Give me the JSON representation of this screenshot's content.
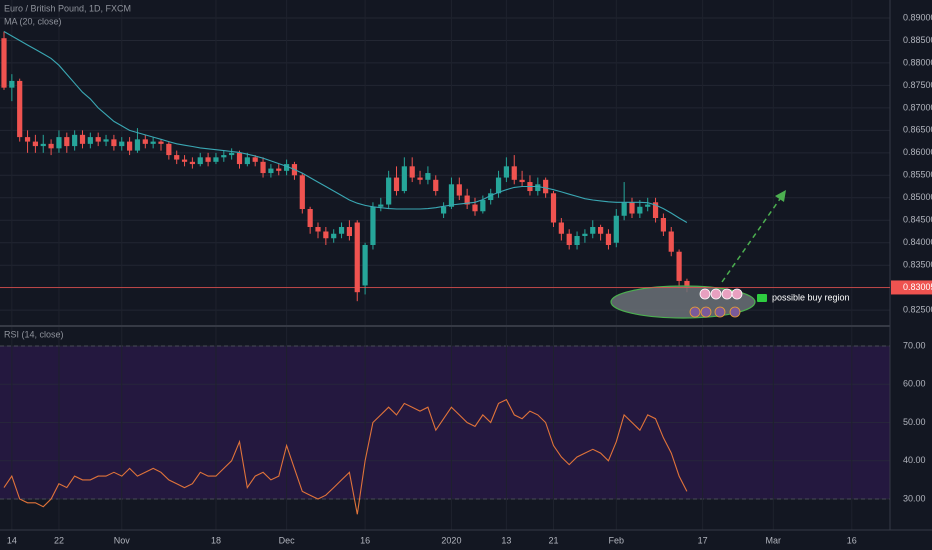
{
  "chart_data": {
    "type": "candlestick",
    "title": "Euro / British Pound, 1D, FXCM",
    "ma_label": "MA (20, close)",
    "rsi_label": "RSI (14, close)",
    "annotation": "possible buy region",
    "colors": {
      "up": "#26a69a",
      "down": "#ef5350",
      "ma": "#3aa7b3",
      "rsi": "#e0733a",
      "band": "#24183f",
      "last": "#ef5350"
    },
    "grid": true,
    "categories": [
      null,
      "14",
      null,
      null,
      null,
      null,
      null,
      "22",
      null,
      null,
      null,
      null,
      null,
      null,
      null,
      "Nov",
      null,
      null,
      null,
      null,
      null,
      null,
      null,
      null,
      null,
      null,
      null,
      "18",
      null,
      null,
      null,
      null,
      null,
      null,
      null,
      null,
      "Dec",
      null,
      null,
      null,
      null,
      null,
      null,
      null,
      null,
      null,
      "16",
      null,
      null,
      null,
      null,
      null,
      null,
      null,
      null,
      null,
      null,
      "2020",
      null,
      null,
      null,
      null,
      null,
      null,
      "13",
      null,
      null,
      null,
      null,
      null,
      "21",
      null,
      null,
      null,
      null,
      null,
      null,
      null,
      "Feb",
      null,
      null,
      null,
      null,
      null,
      null,
      null,
      null,
      null,
      null,
      "17",
      null,
      null,
      null,
      null,
      null,
      null,
      null,
      null,
      "Mar",
      null,
      null,
      null,
      null,
      null,
      null,
      null,
      null,
      null,
      "16",
      null,
      null,
      null,
      null
    ],
    "ohlc": [
      [
        0.8855,
        0.887,
        0.874,
        0.8745
      ],
      [
        0.8745,
        0.8775,
        0.8715,
        0.876
      ],
      [
        0.876,
        0.8765,
        0.8625,
        0.8635
      ],
      [
        0.8635,
        0.865,
        0.86,
        0.8625
      ],
      [
        0.8625,
        0.864,
        0.86,
        0.8615
      ],
      [
        0.8615,
        0.864,
        0.86,
        0.862
      ],
      [
        0.862,
        0.863,
        0.8595,
        0.861
      ],
      [
        0.861,
        0.865,
        0.86,
        0.8635
      ],
      [
        0.8635,
        0.8645,
        0.86,
        0.8615
      ],
      [
        0.8615,
        0.865,
        0.8605,
        0.864
      ],
      [
        0.864,
        0.865,
        0.861,
        0.862
      ],
      [
        0.862,
        0.8645,
        0.861,
        0.8635
      ],
      [
        0.8635,
        0.8645,
        0.8615,
        0.8625
      ],
      [
        0.8625,
        0.864,
        0.8615,
        0.863
      ],
      [
        0.863,
        0.864,
        0.8605,
        0.8615
      ],
      [
        0.8615,
        0.8635,
        0.8605,
        0.8625
      ],
      [
        0.8625,
        0.8635,
        0.8595,
        0.8605
      ],
      [
        0.8605,
        0.8655,
        0.86,
        0.863
      ],
      [
        0.863,
        0.864,
        0.861,
        0.862
      ],
      [
        0.862,
        0.8635,
        0.861,
        0.8625
      ],
      [
        0.8625,
        0.863,
        0.8605,
        0.862
      ],
      [
        0.862,
        0.8625,
        0.8585,
        0.8595
      ],
      [
        0.8595,
        0.8605,
        0.8575,
        0.8585
      ],
      [
        0.8585,
        0.8595,
        0.857,
        0.858
      ],
      [
        0.858,
        0.859,
        0.8565,
        0.8575
      ],
      [
        0.8575,
        0.86,
        0.857,
        0.859
      ],
      [
        0.859,
        0.86,
        0.857,
        0.858
      ],
      [
        0.858,
        0.86,
        0.8575,
        0.859
      ],
      [
        0.859,
        0.8605,
        0.858,
        0.8595
      ],
      [
        0.8595,
        0.861,
        0.8585,
        0.86
      ],
      [
        0.86,
        0.8605,
        0.8565,
        0.8575
      ],
      [
        0.8575,
        0.86,
        0.857,
        0.859
      ],
      [
        0.859,
        0.8595,
        0.857,
        0.858
      ],
      [
        0.858,
        0.859,
        0.8545,
        0.8555
      ],
      [
        0.8555,
        0.8575,
        0.8545,
        0.8565
      ],
      [
        0.8565,
        0.8575,
        0.855,
        0.856
      ],
      [
        0.856,
        0.8585,
        0.855,
        0.8575
      ],
      [
        0.8575,
        0.858,
        0.854,
        0.855
      ],
      [
        0.855,
        0.8555,
        0.8465,
        0.8475
      ],
      [
        0.8475,
        0.848,
        0.842,
        0.8435
      ],
      [
        0.8435,
        0.8445,
        0.841,
        0.8425
      ],
      [
        0.8425,
        0.8435,
        0.8395,
        0.841
      ],
      [
        0.841,
        0.843,
        0.84,
        0.842
      ],
      [
        0.842,
        0.8445,
        0.841,
        0.8435
      ],
      [
        0.8435,
        0.845,
        0.8405,
        0.8415
      ],
      [
        0.8445,
        0.845,
        0.827,
        0.829
      ],
      [
        0.8305,
        0.84,
        0.8285,
        0.8395
      ],
      [
        0.8395,
        0.849,
        0.8385,
        0.848
      ],
      [
        0.848,
        0.85,
        0.847,
        0.8485
      ],
      [
        0.8485,
        0.856,
        0.8475,
        0.8545
      ],
      [
        0.8545,
        0.857,
        0.8505,
        0.8515
      ],
      [
        0.8515,
        0.859,
        0.851,
        0.857
      ],
      [
        0.857,
        0.859,
        0.8535,
        0.8545
      ],
      [
        0.8545,
        0.856,
        0.853,
        0.854
      ],
      [
        0.854,
        0.857,
        0.853,
        0.8555
      ],
      [
        0.854,
        0.855,
        0.8505,
        0.8515
      ],
      [
        0.8465,
        0.849,
        0.8455,
        0.848
      ],
      [
        0.848,
        0.8545,
        0.8475,
        0.853
      ],
      [
        0.853,
        0.8545,
        0.8495,
        0.8505
      ],
      [
        0.8505,
        0.852,
        0.8475,
        0.8485
      ],
      [
        0.8485,
        0.85,
        0.846,
        0.847
      ],
      [
        0.847,
        0.8505,
        0.8465,
        0.8495
      ],
      [
        0.8495,
        0.852,
        0.8485,
        0.851
      ],
      [
        0.851,
        0.856,
        0.85,
        0.8545
      ],
      [
        0.8545,
        0.859,
        0.8535,
        0.857
      ],
      [
        0.857,
        0.8595,
        0.853,
        0.854
      ],
      [
        0.854,
        0.856,
        0.8525,
        0.8535
      ],
      [
        0.8535,
        0.855,
        0.8505,
        0.8515
      ],
      [
        0.8515,
        0.8545,
        0.8505,
        0.853
      ],
      [
        0.854,
        0.8545,
        0.85,
        0.851
      ],
      [
        0.851,
        0.8515,
        0.8435,
        0.8445
      ],
      [
        0.8445,
        0.8455,
        0.8405,
        0.842
      ],
      [
        0.842,
        0.843,
        0.8385,
        0.8395
      ],
      [
        0.8395,
        0.8425,
        0.8385,
        0.8415
      ],
      [
        0.8415,
        0.843,
        0.84,
        0.842
      ],
      [
        0.842,
        0.845,
        0.841,
        0.8435
      ],
      [
        0.8435,
        0.844,
        0.8405,
        0.842
      ],
      [
        0.842,
        0.843,
        0.8385,
        0.8395
      ],
      [
        0.84,
        0.8475,
        0.839,
        0.846
      ],
      [
        0.846,
        0.8535,
        0.845,
        0.849
      ],
      [
        0.849,
        0.85,
        0.8455,
        0.8465
      ],
      [
        0.8465,
        0.8495,
        0.8455,
        0.848
      ],
      [
        0.848,
        0.85,
        0.847,
        0.8485
      ],
      [
        0.849,
        0.85,
        0.8445,
        0.8455
      ],
      [
        0.8455,
        0.8465,
        0.8415,
        0.8425
      ],
      [
        0.8425,
        0.8435,
        0.837,
        0.838
      ],
      [
        0.838,
        0.8385,
        0.8305,
        0.8315
      ],
      [
        0.8315,
        0.832,
        0.829,
        0.83
      ],
      null,
      null,
      null,
      null,
      null,
      null,
      null,
      null,
      null,
      null,
      null,
      null,
      null,
      null,
      null,
      null,
      null,
      null,
      null,
      null,
      null,
      null,
      null,
      null,
      null
    ],
    "ma": [
      0.887,
      0.886,
      0.885,
      0.884,
      0.883,
      0.882,
      0.881,
      0.8795,
      0.8775,
      0.8755,
      0.8735,
      0.872,
      0.87,
      0.8685,
      0.867,
      0.866,
      0.865,
      0.8645,
      0.864,
      0.8635,
      0.863,
      0.8625,
      0.862,
      0.8617,
      0.8614,
      0.8611,
      0.8609,
      0.8607,
      0.8605,
      0.8603,
      0.8601,
      0.8597,
      0.8593,
      0.8588,
      0.8582,
      0.8576,
      0.857,
      0.8563,
      0.8555,
      0.8545,
      0.8535,
      0.8525,
      0.8515,
      0.8505,
      0.8495,
      0.8488,
      0.8483,
      0.848,
      0.8478,
      0.8476,
      0.8475,
      0.8475,
      0.8475,
      0.8475,
      0.8476,
      0.8478,
      0.8481,
      0.8484,
      0.8486,
      0.8488,
      0.849,
      0.8496,
      0.8505,
      0.8512,
      0.8518,
      0.8523,
      0.8525,
      0.8525,
      0.8525,
      0.8522,
      0.8518,
      0.8513,
      0.8508,
      0.8503,
      0.8498,
      0.8495,
      0.8493,
      0.8491,
      0.849,
      0.849,
      0.849,
      0.849,
      0.8489,
      0.8484,
      0.8476,
      0.8466,
      0.8455,
      0.8445,
      null,
      null,
      null,
      null,
      null,
      null,
      null,
      null,
      null,
      null,
      null,
      null,
      null,
      null,
      null,
      null,
      null,
      null,
      null,
      null,
      null,
      null,
      null,
      null,
      null
    ],
    "rsi": [
      33,
      36,
      30,
      29,
      29,
      28,
      30,
      34,
      33,
      36,
      35,
      35,
      36,
      36,
      37,
      36,
      38,
      36,
      37,
      38,
      37,
      35,
      34,
      33,
      34,
      37,
      36,
      36,
      38,
      40,
      45,
      33,
      36,
      37,
      35,
      36,
      44,
      38,
      32,
      31,
      30,
      31,
      33,
      35,
      37,
      26,
      40,
      50,
      52,
      54,
      52,
      55,
      54,
      53,
      54,
      48,
      51,
      54,
      52,
      50,
      49,
      52,
      50,
      55,
      56,
      52,
      51,
      53,
      52,
      50,
      44,
      41,
      39,
      41,
      42,
      43,
      42,
      40,
      45,
      52,
      50,
      48,
      52,
      51,
      46,
      42,
      36,
      32,
      null,
      null,
      null,
      null,
      null,
      null,
      null,
      null,
      null,
      null,
      null,
      null,
      null,
      null,
      null,
      null,
      null,
      null,
      null,
      null,
      null,
      null,
      null,
      null,
      null
    ],
    "last_price": 0.83005,
    "ylim": [
      0.8217,
      0.894
    ],
    "yticks": [
      {
        "value": 0.825,
        "label": "0.82500"
      },
      {
        "value": 0.83,
        "label": "0.83000"
      },
      {
        "value": 0.835,
        "label": "0.83500"
      },
      {
        "value": 0.84,
        "label": "0.84000"
      },
      {
        "value": 0.845,
        "label": "0.84500"
      },
      {
        "value": 0.85,
        "label": "0.85000"
      },
      {
        "value": 0.855,
        "label": "0.85500"
      },
      {
        "value": 0.86,
        "label": "0.86000"
      },
      {
        "value": 0.865,
        "label": "0.86500"
      },
      {
        "value": 0.87,
        "label": "0.87000"
      },
      {
        "value": 0.875,
        "label": "0.87500"
      },
      {
        "value": 0.88,
        "label": "0.88000"
      },
      {
        "value": 0.885,
        "label": "0.88500"
      },
      {
        "value": 0.89,
        "label": "0.89000"
      }
    ],
    "y2lim": [
      21.9,
      74.2
    ],
    "y2ticks": [
      {
        "value": 30,
        "label": "30.00"
      },
      {
        "value": 40,
        "label": "40.00"
      },
      {
        "value": 50,
        "label": "50.00"
      },
      {
        "value": 60,
        "label": "60.00"
      },
      {
        "value": 70,
        "label": "70.00"
      }
    ],
    "rsi_levels": [
      30,
      70
    ]
  }
}
